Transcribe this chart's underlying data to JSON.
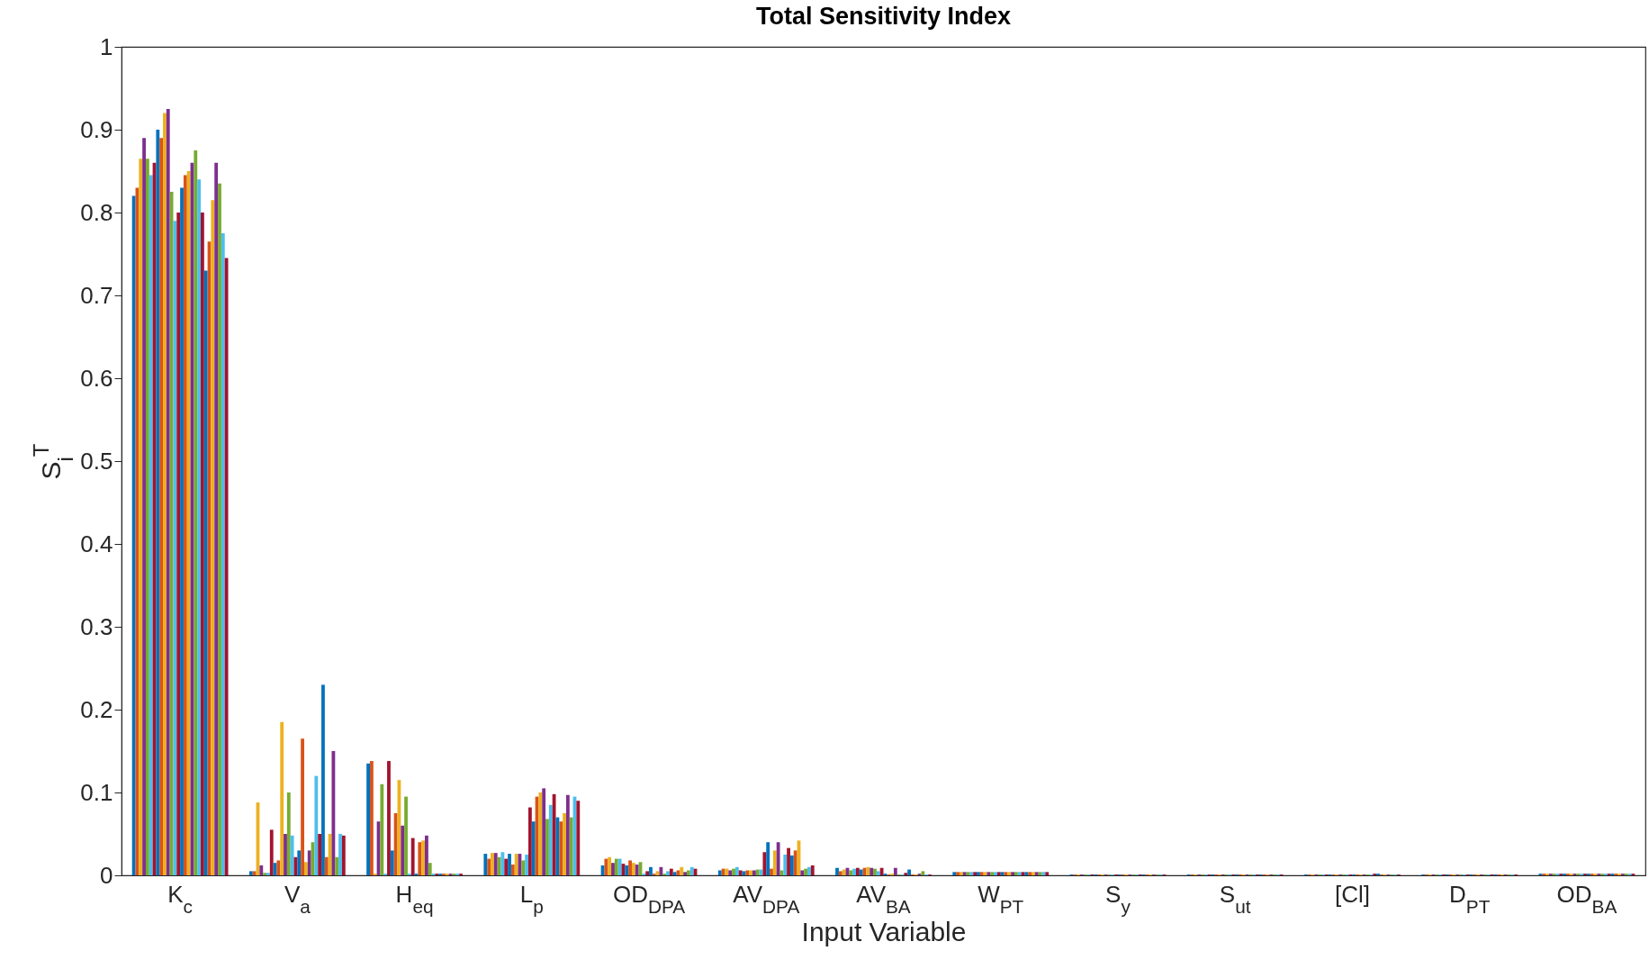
{
  "chart_data": {
    "type": "bar",
    "title": "Total Sensitivity Index",
    "xlabel": "Input Variable",
    "ylabel": "S$_{i}$$^{T}$",
    "categories": [
      "K$_{c}$",
      "V$_{a}$",
      "H$_{eq}$",
      "L$_{p}$",
      "OD$_{DPA}$",
      "AV$_{DPA}$",
      "AV$_{BA}$",
      "W$_{PT}$",
      "S$_{y}$",
      "S$_{ut}$",
      "[Cl]",
      "D$_{PT}$",
      "OD$_{BA}$"
    ],
    "ylim": [
      0,
      1
    ],
    "yticks": [
      0,
      0.1,
      0.2,
      0.3,
      0.4,
      0.5,
      0.6,
      0.7,
      0.8,
      0.9,
      1
    ],
    "grid": false,
    "legend": false,
    "series": [
      {
        "color": "#0072bd",
        "values": [
          0.82,
          0.005,
          0.135,
          0.026,
          0.012,
          0.006,
          0.009,
          0.004,
          0.001,
          0.001,
          0.001,
          0.001,
          0.002
        ]
      },
      {
        "color": "#d95319",
        "values": [
          0.83,
          0.005,
          0.138,
          0.02,
          0.02,
          0.008,
          0.005,
          0.004,
          0.001,
          0.001,
          0.001,
          0.001,
          0.002
        ]
      },
      {
        "color": "#edb120",
        "values": [
          0.865,
          0.088,
          0.002,
          0.027,
          0.022,
          0.008,
          0.007,
          0.004,
          0.001,
          0.001,
          0.001,
          0.001,
          0.002
        ]
      },
      {
        "color": "#7e2f8e",
        "values": [
          0.89,
          0.012,
          0.065,
          0.027,
          0.015,
          0.006,
          0.009,
          0.004,
          0.001,
          0.001,
          0.001,
          0.001,
          0.002
        ]
      },
      {
        "color": "#77ac30",
        "values": [
          0.865,
          0.003,
          0.11,
          0.022,
          0.02,
          0.008,
          0.006,
          0.004,
          0.001,
          0.001,
          0.001,
          0.001,
          0.002
        ]
      },
      {
        "color": "#4dbeee",
        "values": [
          0.845,
          0.003,
          0.002,
          0.028,
          0.02,
          0.01,
          0.008,
          0.004,
          0.001,
          0.001,
          0.001,
          0.001,
          0.002
        ]
      },
      {
        "color": "#a2142f",
        "values": [
          0.86,
          0.055,
          0.138,
          0.02,
          0.014,
          0.006,
          0.009,
          0.004,
          0.001,
          0.001,
          0.001,
          0.001,
          0.002
        ]
      },
      {
        "color": "#0072bd",
        "values": [
          0.9,
          0.015,
          0.03,
          0.026,
          0.012,
          0.005,
          0.007,
          0.004,
          0.001,
          0.001,
          0.001,
          0.001,
          0.002
        ]
      },
      {
        "color": "#d95319",
        "values": [
          0.89,
          0.018,
          0.075,
          0.013,
          0.018,
          0.006,
          0.009,
          0.004,
          0.001,
          0.001,
          0.001,
          0.001,
          0.002
        ]
      },
      {
        "color": "#edb120",
        "values": [
          0.92,
          0.185,
          0.115,
          0.026,
          0.015,
          0.006,
          0.01,
          0.004,
          0.001,
          0.001,
          0.001,
          0.001,
          0.002
        ]
      },
      {
        "color": "#7e2f8e",
        "values": [
          0.925,
          0.05,
          0.06,
          0.026,
          0.013,
          0.006,
          0.009,
          0.004,
          0.001,
          0.001,
          0.001,
          0.001,
          0.002
        ]
      },
      {
        "color": "#77ac30",
        "values": [
          0.825,
          0.1,
          0.095,
          0.018,
          0.016,
          0.007,
          0.008,
          0.004,
          0.001,
          0.001,
          0.001,
          0.001,
          0.002
        ]
      },
      {
        "color": "#4dbeee",
        "values": [
          0.79,
          0.048,
          0.002,
          0.025,
          0.002,
          0.007,
          0.005,
          0.004,
          0.001,
          0.001,
          0.001,
          0.001,
          0.002
        ]
      },
      {
        "color": "#a2142f",
        "values": [
          0.8,
          0.022,
          0.045,
          0.082,
          0.005,
          0.028,
          0.009,
          0.004,
          0.001,
          0.001,
          0.001,
          0.001,
          0.002
        ]
      },
      {
        "color": "#0072bd",
        "values": [
          0.83,
          0.03,
          0.002,
          0.065,
          0.01,
          0.04,
          0.002,
          0.004,
          0.001,
          0.001,
          0.001,
          0.001,
          0.002
        ]
      },
      {
        "color": "#d95319",
        "values": [
          0.845,
          0.165,
          0.04,
          0.095,
          0.002,
          0.008,
          0.001,
          0.004,
          0.001,
          0.001,
          0.001,
          0.001,
          0.002
        ]
      },
      {
        "color": "#edb120",
        "values": [
          0.85,
          0.016,
          0.042,
          0.1,
          0.005,
          0.03,
          0.002,
          0.004,
          0.001,
          0.001,
          0.001,
          0.001,
          0.002
        ]
      },
      {
        "color": "#7e2f8e",
        "values": [
          0.86,
          0.03,
          0.048,
          0.105,
          0.01,
          0.04,
          0.009,
          0.004,
          0.001,
          0.001,
          0.001,
          0.001,
          0.002
        ]
      },
      {
        "color": "#77ac30",
        "values": [
          0.875,
          0.04,
          0.015,
          0.068,
          0.002,
          0.006,
          0.001,
          0.004,
          0.001,
          0.001,
          0.001,
          0.001,
          0.002
        ]
      },
      {
        "color": "#4dbeee",
        "values": [
          0.84,
          0.12,
          0.002,
          0.085,
          0.005,
          0.025,
          0.001,
          0.004,
          0.001,
          0.001,
          0.001,
          0.001,
          0.002
        ]
      },
      {
        "color": "#a2142f",
        "values": [
          0.8,
          0.05,
          0.002,
          0.098,
          0.008,
          0.033,
          0.003,
          0.004,
          0.001,
          0.001,
          0.002,
          0.001,
          0.002
        ]
      },
      {
        "color": "#0072bd",
        "values": [
          0.73,
          0.23,
          0.002,
          0.07,
          0.004,
          0.024,
          0.007,
          0.004,
          0.001,
          0.001,
          0.002,
          0.001,
          0.002
        ]
      },
      {
        "color": "#d95319",
        "values": [
          0.765,
          0.022,
          0.002,
          0.065,
          0.006,
          0.03,
          0.001,
          0.004,
          0.001,
          0.001,
          0.001,
          0.001,
          0.002
        ]
      },
      {
        "color": "#edb120",
        "values": [
          0.815,
          0.05,
          0.002,
          0.075,
          0.01,
          0.042,
          0.001,
          0.004,
          0.001,
          0.001,
          0.001,
          0.001,
          0.002
        ]
      },
      {
        "color": "#7e2f8e",
        "values": [
          0.86,
          0.15,
          0.002,
          0.097,
          0.004,
          0.006,
          0.002,
          0.004,
          0.001,
          0.001,
          0.001,
          0.001,
          0.002
        ]
      },
      {
        "color": "#77ac30",
        "values": [
          0.835,
          0.022,
          0.002,
          0.07,
          0.006,
          0.008,
          0.005,
          0.004,
          0.001,
          0.001,
          0.001,
          0.001,
          0.002
        ]
      },
      {
        "color": "#4dbeee",
        "values": [
          0.775,
          0.05,
          0.002,
          0.095,
          0.01,
          0.01,
          0.001,
          0.004,
          0.001,
          0.001,
          0.001,
          0.001,
          0.002
        ]
      },
      {
        "color": "#a2142f",
        "values": [
          0.745,
          0.048,
          0.002,
          0.09,
          0.008,
          0.012,
          0.001,
          0.004,
          0.001,
          0.001,
          0.001,
          0.001,
          0.002
        ]
      }
    ]
  }
}
